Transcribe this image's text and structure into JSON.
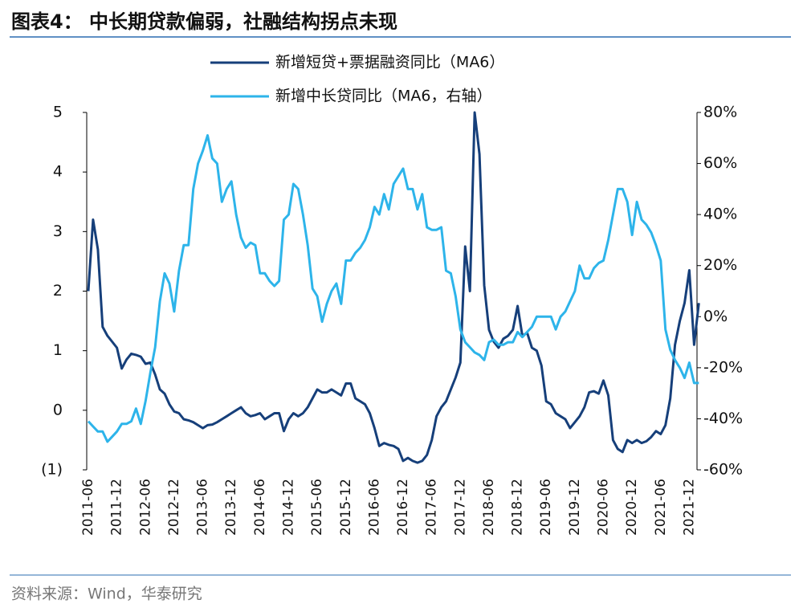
{
  "chart_data": {
    "type": "line",
    "title": "图表4：  中长期贷款偏弱，社融结构拐点未现",
    "source": "资料来源：Wind，华泰研究",
    "categories": [
      "2011-06",
      null,
      null,
      null,
      null,
      null,
      "2011-12",
      null,
      null,
      null,
      null,
      null,
      "2012-06",
      null,
      null,
      null,
      null,
      null,
      "2012-12",
      null,
      null,
      null,
      null,
      null,
      "2013-06",
      null,
      null,
      null,
      null,
      null,
      "2013-12",
      null,
      null,
      null,
      null,
      null,
      "2014-06",
      null,
      null,
      null,
      null,
      null,
      "2014-12",
      null,
      null,
      null,
      null,
      null,
      "2015-06",
      null,
      null,
      null,
      null,
      null,
      "2015-12",
      null,
      null,
      null,
      null,
      null,
      "2016-06",
      null,
      null,
      null,
      null,
      null,
      "2016-12",
      null,
      null,
      null,
      null,
      null,
      "2017-06",
      null,
      null,
      null,
      null,
      null,
      "2017-12",
      null,
      null,
      null,
      null,
      null,
      "2018-06",
      null,
      null,
      null,
      null,
      null,
      "2018-12",
      null,
      null,
      null,
      null,
      null,
      "2019-06",
      null,
      null,
      null,
      null,
      null,
      "2019-12",
      null,
      null,
      null,
      null,
      null,
      "2020-06",
      null,
      null,
      null,
      null,
      null,
      "2020-12",
      null,
      null,
      null,
      null,
      null,
      "2021-06",
      null,
      null,
      null,
      null,
      null,
      "2021-12",
      null,
      null
    ],
    "series": [
      {
        "name": "新增短贷+票据融资同比（MA6）",
        "color": "#163f7a",
        "values": [
          2.0,
          3.2,
          2.7,
          1.4,
          1.25,
          1.15,
          1.05,
          0.7,
          0.85,
          0.95,
          0.93,
          0.9,
          0.78,
          0.8,
          0.6,
          0.35,
          0.28,
          0.1,
          -0.02,
          -0.05,
          -0.15,
          -0.17,
          -0.2,
          -0.25,
          -0.3,
          -0.25,
          -0.24,
          -0.2,
          -0.15,
          -0.1,
          -0.05,
          0,
          0.05,
          -0.05,
          -0.1,
          -0.08,
          -0.05,
          -0.15,
          -0.1,
          -0.05,
          -0.05,
          -0.35,
          -0.15,
          -0.05,
          -0.1,
          -0.05,
          0.05,
          0.2,
          0.35,
          0.3,
          0.3,
          0.35,
          0.3,
          0.25,
          0.45,
          0.45,
          0.2,
          0.15,
          0.1,
          -0.05,
          -0.3,
          -0.6,
          -0.55,
          -0.58,
          -0.6,
          -0.65,
          -0.85,
          -0.8,
          -0.85,
          -0.88,
          -0.85,
          -0.75,
          -0.5,
          -0.1,
          0.05,
          0.15,
          0.35,
          0.55,
          0.8,
          2.75,
          2.0,
          5.0,
          4.3,
          2.1,
          1.35,
          1.15,
          1.05,
          1.2,
          1.25,
          1.35,
          1.75,
          1.25,
          1.3,
          1.05,
          1.0,
          0.75,
          0.15,
          0.1,
          -0.05,
          -0.1,
          -0.15,
          -0.3,
          -0.2,
          -0.1,
          0.05,
          0.3,
          0.32,
          0.28,
          0.5,
          0.25,
          -0.5,
          -0.65,
          -0.7,
          -0.5,
          -0.55,
          -0.5,
          -0.55,
          -0.52,
          -0.45,
          -0.35,
          -0.4,
          -0.25,
          0.2,
          1.1,
          1.5,
          1.8,
          2.35,
          1.1,
          1.8
        ]
      },
      {
        "name": "新增中长贷同比（MA6，右轴）",
        "color": "#2db4ea",
        "axis": "y2",
        "values": [
          -41,
          -43,
          -45,
          -45,
          -49,
          -47,
          -45,
          -42,
          -42,
          -41,
          -36,
          -42,
          -33,
          -22,
          -12,
          6,
          17,
          13,
          2,
          18,
          28,
          28,
          50,
          60,
          65,
          71,
          62,
          60,
          45,
          50,
          53,
          40,
          31,
          27,
          29,
          28,
          17,
          17,
          14,
          12,
          14,
          38,
          40,
          52,
          50,
          40,
          28,
          11,
          8,
          -2,
          5,
          10,
          13,
          5,
          22,
          22,
          25,
          27,
          30,
          35,
          43,
          40,
          48,
          42,
          52,
          55,
          58,
          50,
          50,
          42,
          48,
          35,
          34,
          34,
          35,
          18,
          17,
          8,
          -5,
          -10,
          -12,
          -14,
          -15,
          -17,
          -10,
          -9,
          -11,
          -11,
          -10,
          -10,
          -6,
          -8,
          -6,
          -4,
          0,
          0,
          0,
          0,
          -5,
          0,
          2,
          6,
          10,
          20,
          15,
          15,
          19,
          21,
          22,
          30,
          40,
          50,
          50,
          45,
          32,
          45,
          38,
          36,
          33,
          28,
          22,
          -5,
          -13,
          -17,
          -20,
          -24,
          -18,
          -26,
          -26
        ]
      }
    ],
    "ylim": [
      -1,
      5
    ],
    "yticks": [
      {
        "value": -1,
        "label": "(1)"
      },
      0,
      1,
      2,
      3,
      4,
      5
    ],
    "y2lim": [
      -60,
      80
    ],
    "y2ticks": [
      {
        "value": -60,
        "label": "-60%"
      },
      {
        "value": -40,
        "label": "-40%"
      },
      {
        "value": -20,
        "label": "-20%"
      },
      {
        "value": 0,
        "label": "0%"
      },
      {
        "value": 20,
        "label": "20%"
      },
      {
        "value": 40,
        "label": "40%"
      },
      {
        "value": 60,
        "label": "60%"
      },
      {
        "value": 80,
        "label": "80%"
      }
    ],
    "legend": "top"
  }
}
